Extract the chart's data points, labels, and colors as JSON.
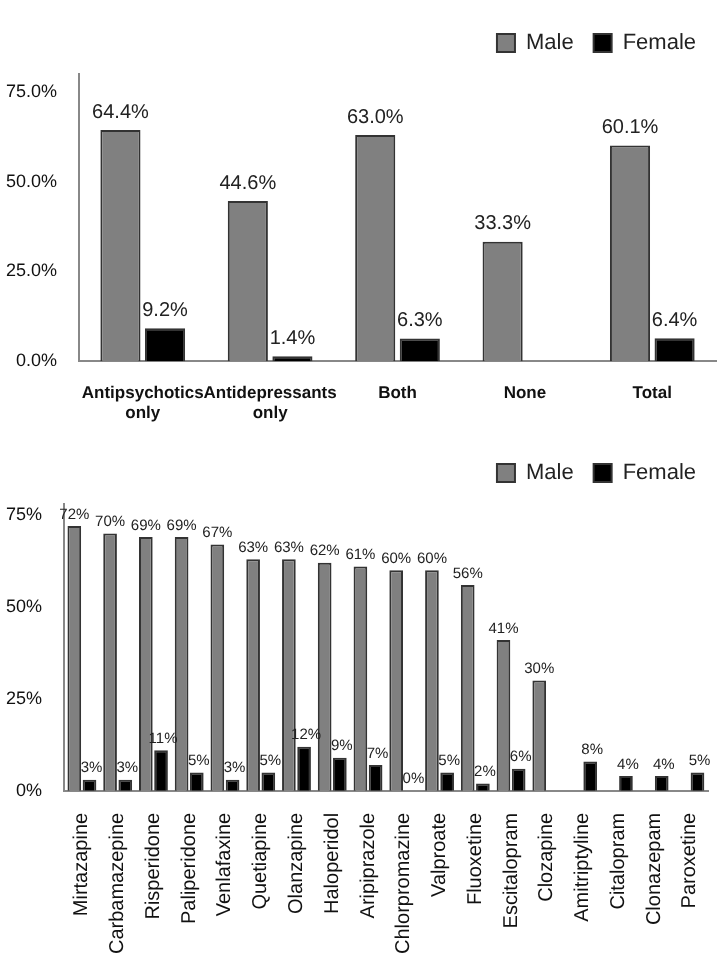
{
  "chart_data": [
    {
      "type": "bar",
      "categories": [
        "Antipsychotics only",
        "Antidepressants only",
        "Both",
        "None",
        "Total"
      ],
      "series": [
        {
          "name": "Male",
          "color": "#808080",
          "values": [
            64.4,
            44.6,
            63.0,
            33.3,
            60.1
          ],
          "value_labels": [
            "64.4%",
            "44.6%",
            "63.0%",
            "33.3%",
            "60.1%"
          ]
        },
        {
          "name": "Female",
          "color": "#000000",
          "values": [
            9.2,
            1.4,
            6.3,
            null,
            6.4
          ],
          "value_labels": [
            "9.2%",
            "1.4%",
            "6.3%",
            null,
            "6.4%"
          ]
        }
      ],
      "ylim": [
        0,
        80
      ],
      "yticks": [
        {
          "value": 0,
          "label": "0.0%"
        },
        {
          "value": 25,
          "label": "25.0%"
        },
        {
          "value": 50,
          "label": "50.0%"
        },
        {
          "value": 75,
          "label": "75.0%"
        }
      ],
      "grid": false,
      "legend": "top right"
    },
    {
      "type": "bar",
      "categories": [
        "Mirtazapine",
        "Carbamazepine",
        "Risperidone",
        "Paliperidone",
        "Venlafaxine",
        "Quetiapine",
        "Olanzapine",
        "Haloperidol",
        "Aripiprazole",
        "Chlorpromazine",
        "Valproate",
        "Fluoxetine",
        "Escitalopram",
        "Clozapine",
        "Amitriptyline",
        "Citalopram",
        "Clonazepam",
        "Paroxetine"
      ],
      "series": [
        {
          "name": "Male",
          "color": "#808080",
          "values": [
            72,
            70,
            69,
            69,
            67,
            63,
            63,
            62,
            61,
            60,
            60,
            56,
            41,
            30,
            null,
            null,
            null,
            null
          ],
          "value_labels": [
            "72%",
            "70%",
            "69%",
            "69%",
            "67%",
            "63%",
            "63%",
            "62%",
            "61%",
            "60%",
            "60%",
            "56%",
            "41%",
            "30%",
            null,
            null,
            null,
            null
          ]
        },
        {
          "name": "Female",
          "color": "#000000",
          "values": [
            3,
            3,
            11,
            5,
            3,
            5,
            12,
            9,
            7,
            0,
            5,
            2,
            6,
            null,
            8,
            4,
            4,
            5
          ],
          "value_labels": [
            "3%",
            "3%",
            "11%",
            "5%",
            "3%",
            "5%",
            "12%",
            "9%",
            "7%",
            "0%",
            "5%",
            "2%",
            "6%",
            null,
            "8%",
            "4%",
            "4%",
            "5%"
          ]
        }
      ],
      "ylim": [
        0,
        78
      ],
      "yticks": [
        {
          "value": 0,
          "label": "0%"
        },
        {
          "value": 25,
          "label": "25%"
        },
        {
          "value": 50,
          "label": "50%"
        },
        {
          "value": 75,
          "label": "75%"
        }
      ],
      "grid": false,
      "legend": "top right"
    }
  ]
}
